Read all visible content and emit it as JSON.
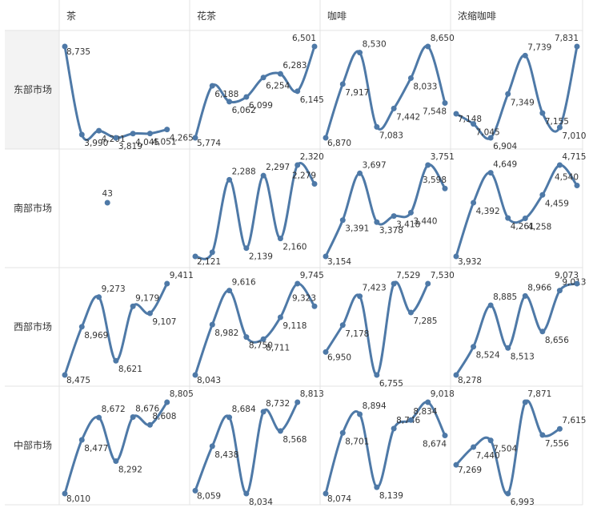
{
  "chart_data": {
    "type": "line",
    "columns": [
      "茶",
      "花茶",
      "咖啡",
      "浓缩咖啡"
    ],
    "rows": [
      "东部市场",
      "南部市场",
      "西部市场",
      "中部市场"
    ],
    "series_color": "#4e79a7",
    "panels": [
      [
        {
          "values": [
            8735,
            3990,
            4201,
            3819,
            4045,
            4051,
            4265,
            null
          ],
          "labels": [
            "8,735",
            "3,990",
            "4,201",
            "3,819",
            "4,045",
            "4,051",
            "4,265",
            ""
          ]
        },
        {
          "values": [
            5774,
            6188,
            6062,
            6099,
            6254,
            6283,
            6145,
            6501
          ],
          "labels": [
            "5,774",
            "6,188",
            "6,062",
            "6,099",
            "6,254",
            "6,283",
            "6,145",
            "6,501"
          ]
        },
        {
          "values": [
            6870,
            7917,
            8530,
            7083,
            7442,
            8033,
            8650,
            7548
          ],
          "labels": [
            "6,870",
            "7,917",
            "8,530",
            "7,083",
            "7,442",
            "8,033",
            "8,650",
            "7,548"
          ]
        },
        {
          "values": [
            7148,
            7045,
            6904,
            7349,
            7739,
            7155,
            7010,
            7831
          ],
          "labels": [
            "7,148",
            "7,045",
            "6,904",
            "7,349",
            "7,739",
            "7,155",
            "7,010",
            "7,831"
          ]
        }
      ],
      [
        {
          "values": [
            null,
            null,
            null,
            null,
            null,
            null,
            null,
            null
          ],
          "labels": [
            "",
            "",
            "",
            "",
            "",
            "",
            "",
            ""
          ],
          "single": {
            "value": 43,
            "label": "43"
          }
        },
        {
          "values": [
            2121,
            2130,
            2288,
            2139,
            2297,
            2160,
            2320,
            2279
          ],
          "labels": [
            "2,121",
            "",
            "2,288",
            "2,139",
            "2,297",
            "2,160",
            "2,320",
            "2,279"
          ]
        },
        {
          "values": [
            3154,
            3391,
            3697,
            3378,
            3418,
            3440,
            3751,
            3598
          ],
          "labels": [
            "3,154",
            "3,391",
            "3,697",
            "3,378",
            "3,418",
            "3,440",
            "3,751",
            "3,598"
          ]
        },
        {
          "values": [
            3932,
            4392,
            4649,
            4261,
            4258,
            4459,
            4715,
            4540
          ],
          "labels": [
            "3,932",
            "4,392",
            "4,649",
            "4,261",
            "4,258",
            "4,459",
            "4,715",
            "4,540"
          ]
        }
      ],
      [
        {
          "values": [
            8475,
            8969,
            9273,
            8621,
            9179,
            9107,
            9411,
            null
          ],
          "labels": [
            "8,475",
            "8,969",
            "9,273",
            "8,621",
            "9,179",
            "9,107",
            "9,411",
            ""
          ]
        },
        {
          "values": [
            8043,
            8982,
            9616,
            8750,
            8711,
            9118,
            9745,
            9323
          ],
          "labels": [
            "8,043",
            "8,982",
            "9,616",
            "8,750",
            "8,711",
            "9,118",
            "9,745",
            "9,323"
          ]
        },
        {
          "values": [
            6950,
            7178,
            7423,
            6755,
            7529,
            7285,
            7530,
            null
          ],
          "labels": [
            "6,950",
            "7,178",
            "7,423",
            "6,755",
            "7,529",
            "7,285",
            "7,530",
            ""
          ]
        },
        {
          "values": [
            8278,
            8524,
            8885,
            8513,
            8966,
            8656,
            9013,
            9073
          ],
          "labels": [
            "8,278",
            "8,524",
            "8,885",
            "8,513",
            "8,966",
            "8,656",
            "9,013",
            "9,073"
          ]
        }
      ],
      [
        {
          "values": [
            8010,
            8477,
            8672,
            8292,
            8676,
            8608,
            8805,
            null
          ],
          "labels": [
            "8,010",
            "8,477",
            "8,672",
            "8,292",
            "8,676",
            "8,608",
            "8,805",
            ""
          ]
        },
        {
          "values": [
            8059,
            8438,
            8684,
            8034,
            8732,
            8568,
            8813,
            null
          ],
          "labels": [
            "8,059",
            "8,438",
            "8,684",
            "8,034",
            "8,732",
            "8,568",
            "8,813",
            ""
          ]
        },
        {
          "values": [
            8074,
            8701,
            8894,
            8139,
            8746,
            8834,
            9018,
            8674
          ],
          "labels": [
            "8,074",
            "8,701",
            "8,894",
            "8,139",
            "8,746",
            "8,834",
            "9,018",
            "8,674"
          ]
        },
        {
          "values": [
            7269,
            7440,
            7504,
            6993,
            7871,
            7556,
            7615,
            null
          ],
          "labels": [
            "7,269",
            "7,440",
            "7,504",
            "6,993",
            "7,871",
            "7,556",
            "7,615",
            ""
          ]
        }
      ]
    ]
  }
}
